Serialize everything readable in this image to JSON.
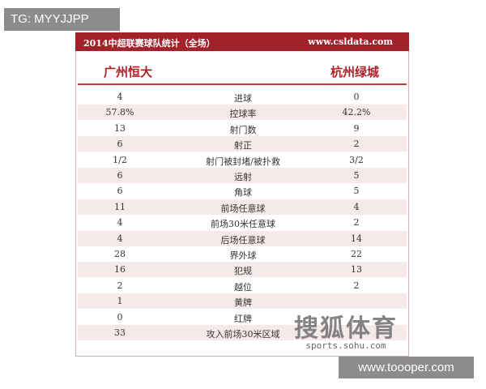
{
  "watermark_top": "TG: MYYJJPP",
  "header": {
    "title": "2014中超联赛球队统计（全场）",
    "site": "www.csldata.com"
  },
  "teams": [
    "广州恒大",
    "杭州绿城"
  ],
  "table": {
    "rows": [
      [
        "4",
        "进球",
        "0"
      ],
      [
        "57.8%",
        "控球率",
        "42.2%"
      ],
      [
        "13",
        "射门数",
        "9"
      ],
      [
        "6",
        "射正",
        "2"
      ],
      [
        "1/2",
        "射门被封堵/被扑救",
        "3/2"
      ],
      [
        "6",
        "远射",
        "5"
      ],
      [
        "6",
        "角球",
        "5"
      ],
      [
        "11",
        "前场任意球",
        "4"
      ],
      [
        "4",
        "前场30米任意球",
        "2"
      ],
      [
        "4",
        "后场任意球",
        "14"
      ],
      [
        "28",
        "界外球",
        "22"
      ],
      [
        "16",
        "犯规",
        "13"
      ],
      [
        "2",
        "越位",
        "2"
      ],
      [
        "1",
        "黄牌"
      ],
      [
        "0",
        "红牌"
      ],
      [
        "33",
        "攻入前场30米区域"
      ]
    ]
  },
  "logo": {
    "name": "搜狐体育",
    "url": "sports.sohu.com"
  },
  "watermark_bottom": "www.toooper.com"
}
